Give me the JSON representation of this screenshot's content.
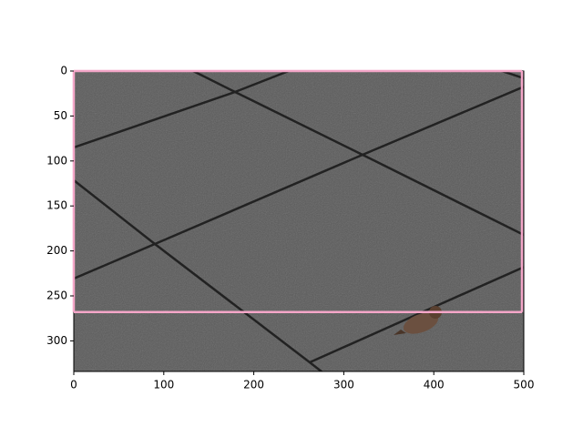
{
  "chart_data": {
    "type": "image",
    "xlim": [
      0,
      500
    ],
    "ylim": [
      334,
      0
    ],
    "xticks": [
      0,
      100,
      200,
      300,
      400,
      500
    ],
    "yticks": [
      0,
      50,
      100,
      150,
      200,
      250,
      300
    ],
    "box": {
      "x": [
        0,
        498
      ],
      "y": [
        0,
        268
      ],
      "color": "#f4a6c8"
    }
  }
}
